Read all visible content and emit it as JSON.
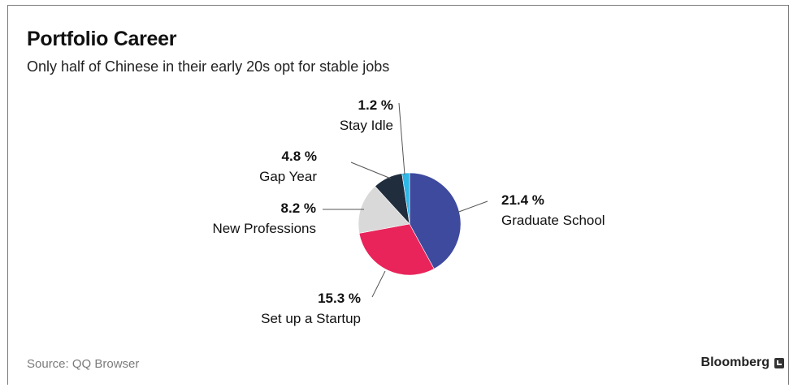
{
  "header": {
    "title": "Portfolio Career",
    "subtitle": "Only half of Chinese in their early 20s opt for stable jobs"
  },
  "footer": {
    "source": "Source: QQ Browser",
    "brand": "Bloomberg"
  },
  "chart_data": {
    "type": "pie",
    "title": "Portfolio Career",
    "subtitle": "Only half of Chinese in their early 20s opt for stable jobs",
    "slices": [
      {
        "label": "Graduate School",
        "value": 21.4,
        "value_label": "21.4 %",
        "color": "#3d4a9e"
      },
      {
        "label": "Set up a Startup",
        "value": 15.3,
        "value_label": "15.3 %",
        "color": "#e8245a"
      },
      {
        "label": "New Professions",
        "value": 8.2,
        "value_label": "8.2 %",
        "color": "#d9d9d9"
      },
      {
        "label": "Gap Year",
        "value": 4.8,
        "value_label": "4.8 %",
        "color": "#1f2d3d"
      },
      {
        "label": "Stay Idle",
        "value": 1.2,
        "value_label": "1.2 %",
        "color": "#2eb8e6"
      }
    ],
    "legend": "none",
    "source": "Source: QQ Browser"
  }
}
